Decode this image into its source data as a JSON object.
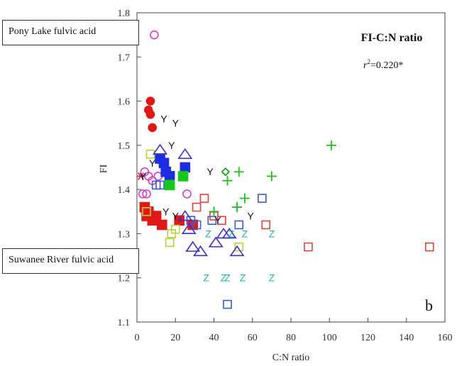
{
  "chart_data": {
    "type": "scatter",
    "title": "FI-C:N ratio",
    "r2_label": "r",
    "r2_sup": "2",
    "r2_value": "=0.220*",
    "panel_letter": "b",
    "xlabel": "C:N ratio",
    "ylabel": "FI",
    "xlim": [
      0,
      160
    ],
    "ylim": [
      1.1,
      1.8
    ],
    "xticks": [
      "0",
      "20",
      "40",
      "60",
      "80",
      "100",
      "120",
      "140",
      "160"
    ],
    "yticks": [
      "1.1",
      "1.2",
      "1.3",
      "1.4",
      "1.5",
      "1.6",
      "1.7",
      "1.8"
    ],
    "grid": false,
    "annotations": {
      "top_label": "Pony Lake fulvic acid",
      "bottom_label": "Suwanee River fulvic acid"
    },
    "series": [
      {
        "marker": "circle",
        "color": "#e01818",
        "filled": true,
        "points": [
          [
            7,
            1.6
          ],
          [
            6,
            1.58
          ],
          [
            7,
            1.57
          ],
          [
            8,
            1.54
          ]
        ]
      },
      {
        "marker": "circle",
        "color": "#d040c0",
        "filled": false,
        "points": [
          [
            9,
            1.75
          ],
          [
            4,
            1.44
          ],
          [
            6,
            1.43
          ],
          [
            3,
            1.39
          ],
          [
            5,
            1.39
          ],
          [
            8,
            1.42
          ],
          [
            11,
            1.43
          ],
          [
            26,
            1.39
          ]
        ]
      },
      {
        "marker": "square",
        "color": "#e01818",
        "filled": true,
        "points": [
          [
            4,
            1.36
          ],
          [
            6,
            1.35
          ],
          [
            10,
            1.34
          ],
          [
            8,
            1.33
          ],
          [
            13,
            1.32
          ],
          [
            5,
            1.34
          ],
          [
            22,
            1.33
          ],
          [
            29,
            1.32
          ]
        ]
      },
      {
        "marker": "square",
        "color": "#1d2ee0",
        "filled": true,
        "points": [
          [
            12,
            1.47
          ],
          [
            14,
            1.46
          ],
          [
            15,
            1.44
          ],
          [
            17,
            1.43
          ],
          [
            25,
            1.45
          ]
        ]
      },
      {
        "marker": "square",
        "color": "#18c818",
        "filled": true,
        "points": [
          [
            17,
            1.41
          ],
          [
            24,
            1.43
          ]
        ]
      },
      {
        "marker": "square",
        "color": "#3a5ad0",
        "filled": false,
        "points": [
          [
            10,
            1.41
          ],
          [
            12,
            1.41
          ],
          [
            28,
            1.33
          ],
          [
            31,
            1.32
          ],
          [
            39,
            1.33
          ],
          [
            53,
            1.32
          ],
          [
            65,
            1.38
          ],
          [
            47,
            1.14
          ]
        ]
      },
      {
        "marker": "square",
        "color": "#b8d040",
        "filled": false,
        "points": [
          [
            7,
            1.48
          ],
          [
            5,
            1.35
          ],
          [
            17,
            1.28
          ],
          [
            18,
            1.3
          ],
          [
            20,
            1.31
          ],
          [
            53,
            1.27
          ]
        ]
      },
      {
        "marker": "square",
        "color": "#e04040",
        "filled": false,
        "points": [
          [
            35,
            1.38
          ],
          [
            31,
            1.36
          ],
          [
            40,
            1.34
          ],
          [
            44,
            1.33
          ],
          [
            67,
            1.32
          ],
          [
            89,
            1.27
          ],
          [
            152,
            1.27
          ]
        ]
      },
      {
        "marker": "triangle",
        "color": "#3c30c0",
        "filled": false,
        "points": [
          [
            12,
            1.49
          ],
          [
            25,
            1.48
          ],
          [
            25,
            1.34
          ],
          [
            27,
            1.31
          ],
          [
            29,
            1.27
          ],
          [
            33,
            1.26
          ],
          [
            41,
            1.28
          ],
          [
            45,
            1.3
          ],
          [
            48,
            1.3
          ],
          [
            52,
            1.26
          ]
        ]
      },
      {
        "marker": "plus",
        "color": "#20c020",
        "filled": false,
        "points": [
          [
            101,
            1.5
          ],
          [
            53,
            1.44
          ],
          [
            70,
            1.43
          ],
          [
            47,
            1.42
          ],
          [
            56,
            1.38
          ],
          [
            52,
            1.36
          ],
          [
            40,
            1.35
          ]
        ]
      },
      {
        "marker": "diamond",
        "color": "#20a020",
        "filled": false,
        "points": [
          [
            46,
            1.44
          ]
        ]
      },
      {
        "marker": "star",
        "color": "#d02060",
        "filled": false,
        "points": [
          [
            2,
            1.43
          ]
        ]
      },
      {
        "marker": "letter",
        "glyph": "Y",
        "color": "#111111",
        "points": [
          [
            14,
            1.56
          ],
          [
            20,
            1.55
          ],
          [
            18,
            1.5
          ],
          [
            38,
            1.44
          ],
          [
            15,
            1.35
          ],
          [
            20,
            1.34
          ],
          [
            42,
            1.33
          ],
          [
            59,
            1.34
          ],
          [
            8,
            1.46
          ],
          [
            3,
            1.43
          ]
        ]
      },
      {
        "marker": "letter",
        "glyph": "Z",
        "color": "#20b0b0",
        "points": [
          [
            37,
            1.3
          ],
          [
            49,
            1.3
          ],
          [
            56,
            1.3
          ],
          [
            70,
            1.3
          ],
          [
            36,
            1.2
          ],
          [
            45,
            1.2
          ],
          [
            47,
            1.2
          ],
          [
            55,
            1.2
          ],
          [
            70,
            1.2
          ]
        ]
      }
    ]
  }
}
